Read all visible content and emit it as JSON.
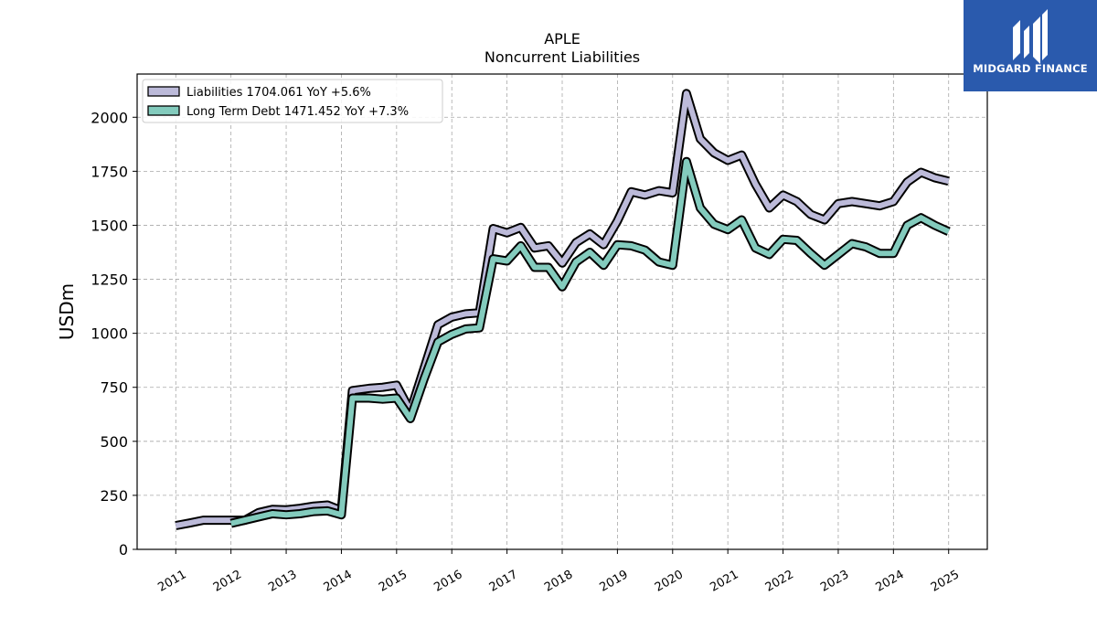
{
  "chart_data": {
    "type": "line",
    "title": "APLE",
    "subtitle": "Noncurrent  Liabilities",
    "xlabel": "",
    "ylabel": "USDm",
    "xlim": [
      2010.3,
      2025.7
    ],
    "ylim": [
      0,
      2200
    ],
    "yticks": [
      0,
      250,
      500,
      750,
      1000,
      1250,
      1500,
      1750,
      2000
    ],
    "xticks": [
      "2011",
      "2012",
      "2013",
      "2014",
      "2015",
      "2016",
      "2017",
      "2018",
      "2019",
      "2020",
      "2021",
      "2022",
      "2023",
      "2024",
      "2025"
    ],
    "grid": true,
    "legend_position": "top-left",
    "series": [
      {
        "name": "Liabilities",
        "legend_label": "Liabilities  1704.061 YoY +5.6%",
        "color": "#bcbad9",
        "x": [
          2011.0,
          2011.25,
          2011.5,
          2011.75,
          2012.0,
          2012.25,
          2012.5,
          2012.75,
          2013.0,
          2013.25,
          2013.5,
          2013.75,
          2014.0,
          2014.2,
          2014.5,
          2014.75,
          2015.0,
          2015.25,
          2015.5,
          2015.75,
          2016.0,
          2016.25,
          2016.5,
          2016.75,
          2017.0,
          2017.25,
          2017.5,
          2017.75,
          2018.0,
          2018.25,
          2018.5,
          2018.75,
          2019.0,
          2019.25,
          2019.5,
          2019.75,
          2020.0,
          2020.25,
          2020.5,
          2020.75,
          2021.0,
          2021.25,
          2021.5,
          2021.75,
          2022.0,
          2022.25,
          2022.5,
          2022.75,
          2023.0,
          2023.25,
          2023.5,
          2023.75,
          2024.0,
          2024.25,
          2024.5,
          2024.75,
          2025.0
        ],
        "values": [
          110,
          122,
          135,
          135,
          135,
          135,
          170,
          185,
          183,
          190,
          200,
          205,
          180,
          735,
          745,
          750,
          760,
          640,
          840,
          1040,
          1075,
          1090,
          1095,
          1485,
          1465,
          1490,
          1395,
          1405,
          1325,
          1420,
          1460,
          1410,
          1520,
          1655,
          1640,
          1660,
          1650,
          2110,
          1900,
          1835,
          1800,
          1825,
          1690,
          1580,
          1640,
          1610,
          1550,
          1525,
          1600,
          1610,
          1600,
          1590,
          1610,
          1700,
          1745,
          1720,
          1704
        ]
      },
      {
        "name": "Long Term Debt",
        "legend_label": "Long Term Debt  1471.452 YoY +7.3%",
        "color": "#83cbbd",
        "x": [
          2012.0,
          2012.25,
          2012.5,
          2012.75,
          2013.0,
          2013.25,
          2013.5,
          2013.75,
          2014.0,
          2014.2,
          2014.5,
          2014.75,
          2015.0,
          2015.25,
          2015.5,
          2015.75,
          2016.0,
          2016.25,
          2016.5,
          2016.75,
          2017.0,
          2017.25,
          2017.5,
          2017.75,
          2018.0,
          2018.25,
          2018.5,
          2018.75,
          2019.0,
          2019.25,
          2019.5,
          2019.75,
          2020.0,
          2020.25,
          2020.5,
          2020.75,
          2021.0,
          2021.25,
          2021.5,
          2021.75,
          2022.0,
          2022.25,
          2022.5,
          2022.75,
          2023.0,
          2023.25,
          2023.5,
          2023.75,
          2024.0,
          2024.25,
          2024.5,
          2024.75,
          2025.0
        ],
        "values": [
          120,
          135,
          150,
          165,
          160,
          165,
          175,
          178,
          160,
          700,
          700,
          695,
          700,
          605,
          790,
          960,
          995,
          1020,
          1025,
          1345,
          1335,
          1405,
          1305,
          1305,
          1215,
          1330,
          1375,
          1315,
          1410,
          1405,
          1385,
          1330,
          1315,
          1795,
          1580,
          1505,
          1480,
          1525,
          1395,
          1365,
          1435,
          1430,
          1370,
          1315,
          1365,
          1415,
          1400,
          1370,
          1370,
          1500,
          1535,
          1500,
          1471
        ]
      }
    ]
  },
  "logo": {
    "text": "MIDGARD FINANCE",
    "color": "#2a5aad"
  }
}
